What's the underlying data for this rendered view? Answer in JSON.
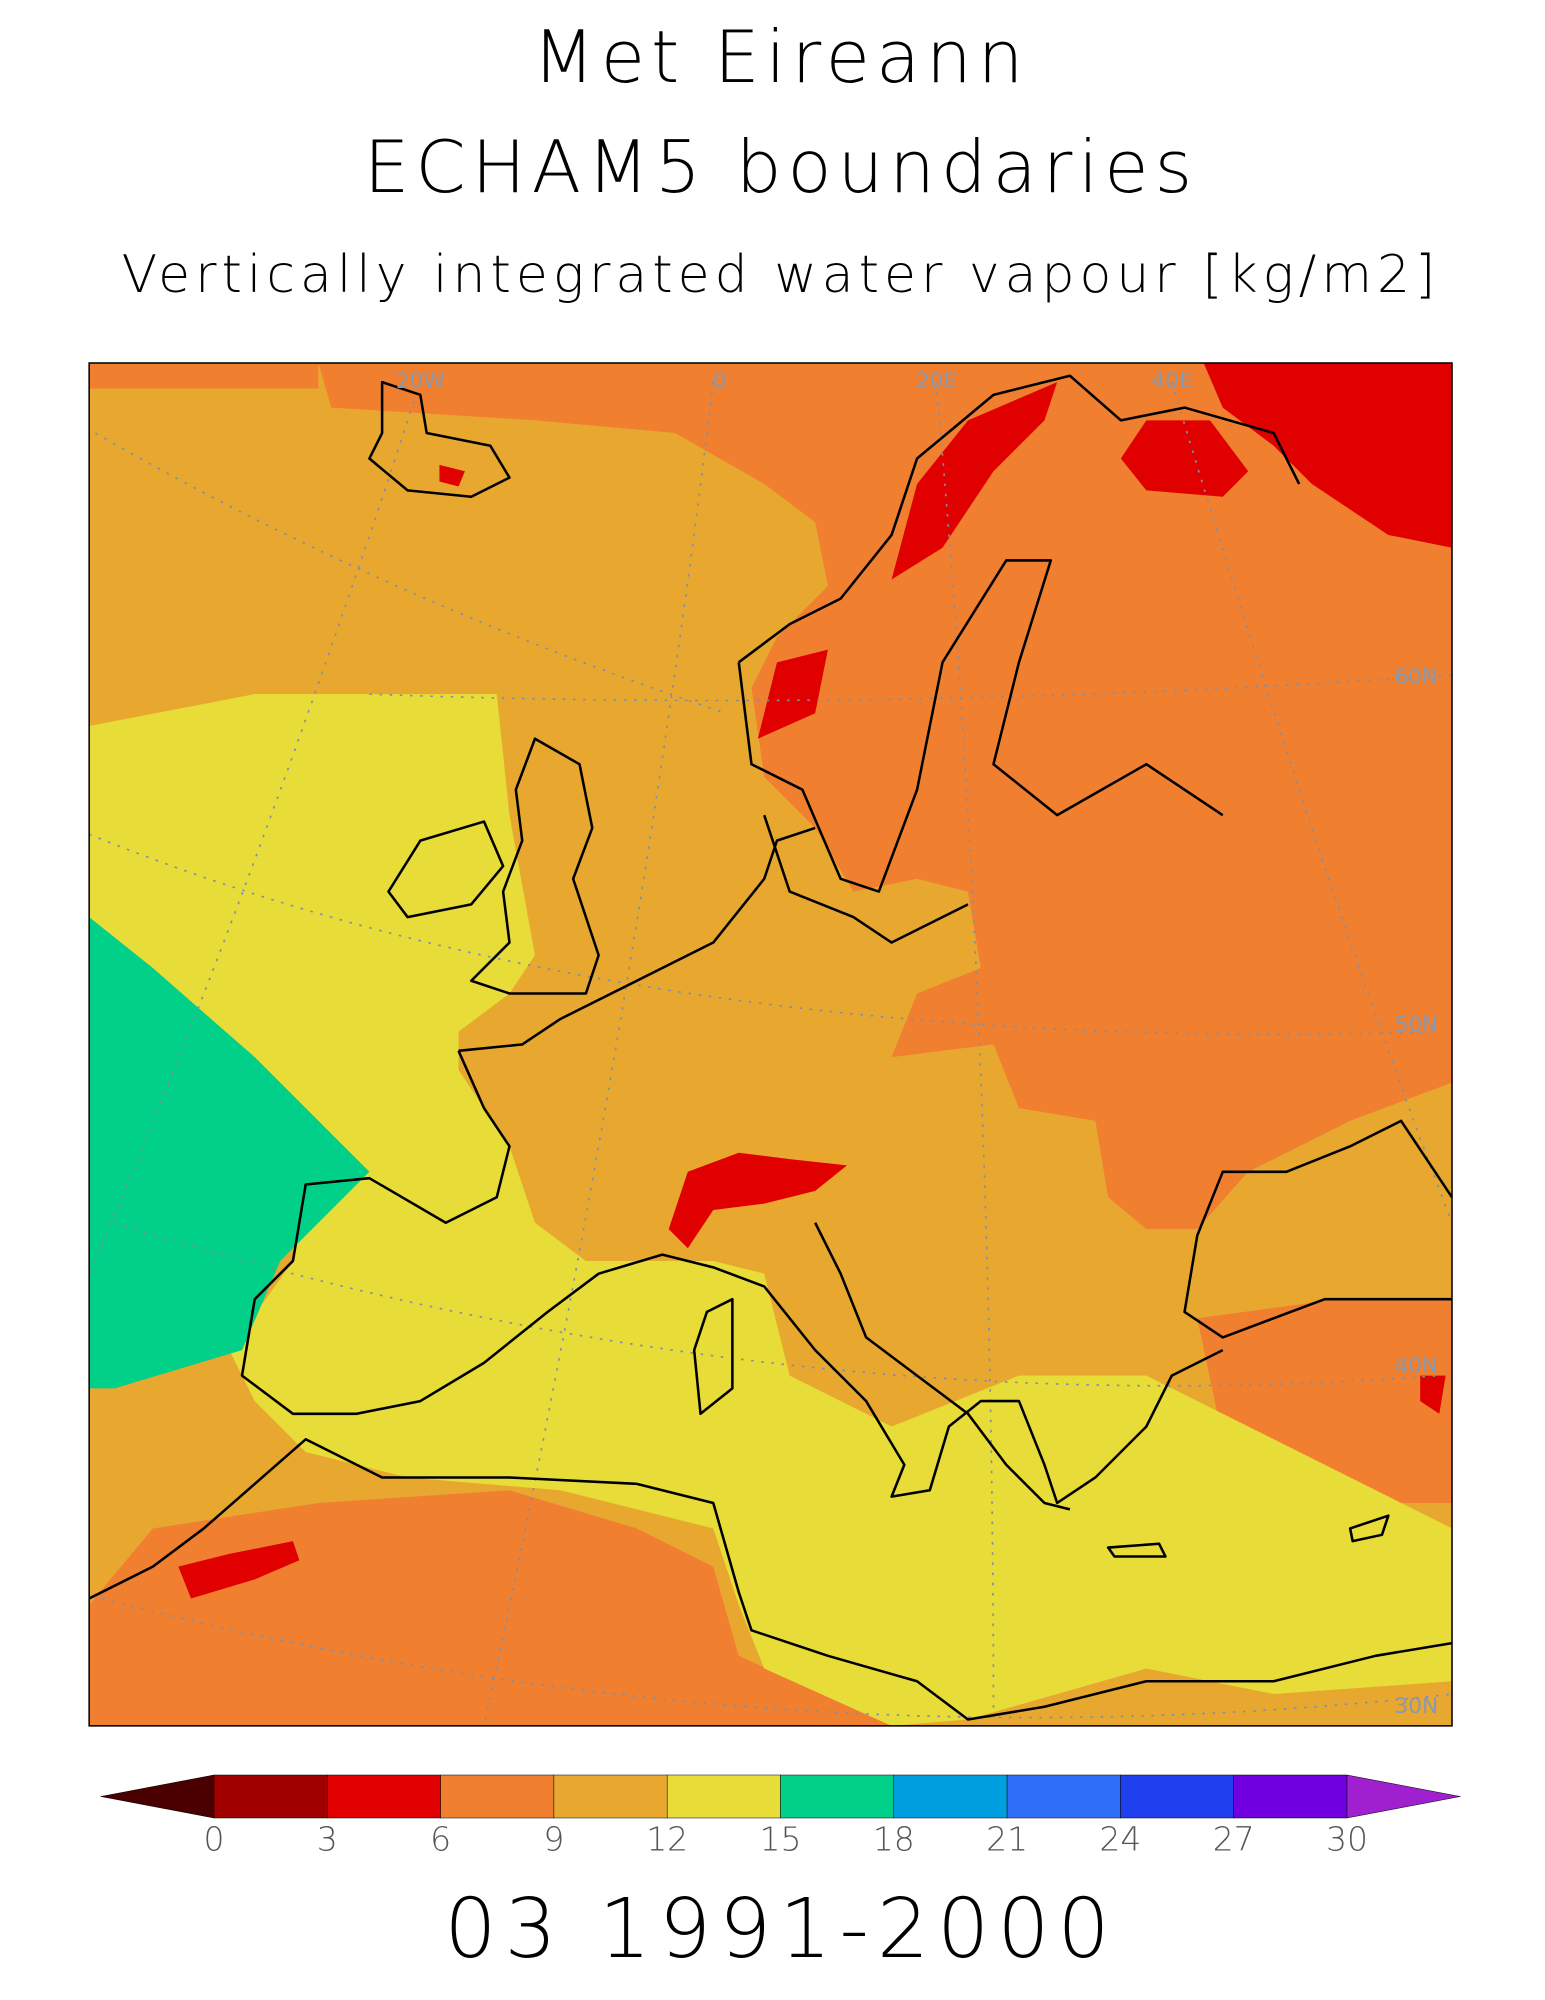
{
  "header": {
    "title": "Met Eireann",
    "subtitle": "ECHAM5 boundaries",
    "variable": "Vertically integrated water vapour [kg/m2]"
  },
  "map": {
    "graticule_labels": [
      "20W",
      "0",
      "20E",
      "40E",
      "60N",
      "50N",
      "40N",
      "30N"
    ]
  },
  "colorbar": {
    "ticks": [
      0,
      3,
      6,
      9,
      12,
      15,
      18,
      21,
      24,
      27,
      30
    ],
    "colors": [
      "#4a0000",
      "#a00000",
      "#e00000",
      "#f08030",
      "#e8a830",
      "#e8dc38",
      "#00d088",
      "#00a0e0",
      "#3070f8",
      "#2040f0",
      "#7000e0",
      "#a020d0"
    ]
  },
  "footer": "03 1991-2000"
}
